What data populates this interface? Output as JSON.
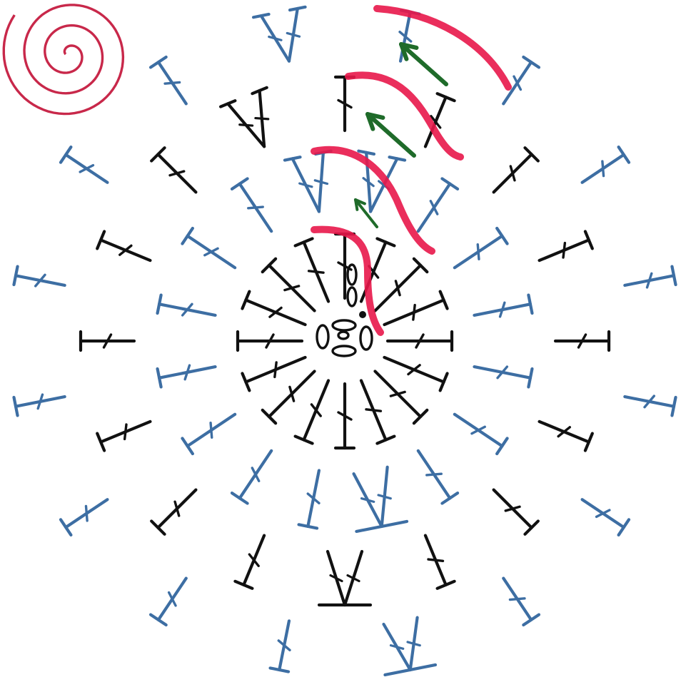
{
  "colors": {
    "background": "#ffffff",
    "black_stitch": "#111111",
    "blue_stitch": "#3d6ea3",
    "spiral": "#c8284a",
    "highlight": "#e8174a",
    "arrow": "#1f6b2a"
  },
  "icons": {
    "spiral": "spiral-icon",
    "chain": "chain-stitch-oval",
    "slip_stitch": "slip-stitch-dot",
    "stitch": "double-crochet-stitch",
    "increase": "v-increase-stitch",
    "decrease": "a-decrease-stitch",
    "arrow": "direction-arrow"
  },
  "rounds": [
    {
      "round": 1,
      "stitches": 16,
      "color": "black"
    },
    {
      "round": 2,
      "stitches": 16,
      "color": "blue"
    },
    {
      "round": 3,
      "stitches": 16,
      "color": "black"
    },
    {
      "round": 4,
      "stitches": 16,
      "color": "blue"
    }
  ],
  "center": {
    "chain_count": 5,
    "slip_stitch": 1
  }
}
